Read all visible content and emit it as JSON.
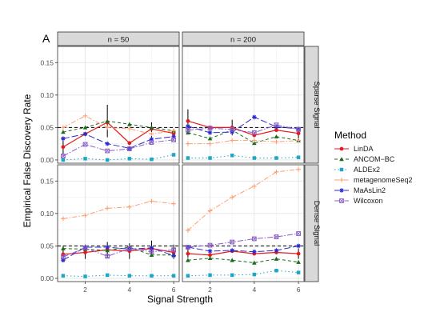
{
  "panel_tag": "A",
  "legend_title": "Method",
  "chart_data": {
    "type": "line",
    "xlabel": "Signal Strength",
    "ylabel": "Empirical False Discovery Rate",
    "x": [
      1,
      2,
      3,
      4,
      5,
      6
    ],
    "x_ticks": [
      2,
      4,
      6
    ],
    "xlim": [
      0.75,
      6.25
    ],
    "column_strips": [
      "n = 50",
      "n = 200"
    ],
    "row_strips": [
      "Sparse Signal",
      "Dense Signal"
    ],
    "reference_line": 0.05,
    "ylim": [
      -0.005,
      0.175
    ],
    "y_ticks": [
      0.0,
      0.05,
      0.1,
      0.15
    ],
    "y_tick_labels": [
      "0.00",
      "0.05",
      "0.10",
      "0.15"
    ],
    "grid": true,
    "legend_position": "right",
    "methods": [
      {
        "name": "LinDA",
        "color": "#e41a1c",
        "dash": "",
        "marker": "circle"
      },
      {
        "name": "ANCOM−BC",
        "color": "#1a6b1a",
        "dash": "4,3",
        "marker": "triangle"
      },
      {
        "name": "ALDEx2",
        "color": "#1ea7c4",
        "dash": "1.5,3",
        "marker": "square"
      },
      {
        "name": "metagenomeSeq2",
        "color": "#ff9f73",
        "dash": "6,2,1.5,2",
        "marker": "plus"
      },
      {
        "name": "MaAsLin2",
        "color": "#2a2ad2",
        "dash": "8,3",
        "marker": "star"
      },
      {
        "name": "Wilcoxon",
        "color": "#8b5fc7",
        "dash": "7,2,1.5,2",
        "marker": "square-cross"
      }
    ],
    "panels": [
      {
        "row": "Sparse Signal",
        "col": "n = 50",
        "series": {
          "LinDA": [
            0.02,
            0.04,
            0.058,
            0.026,
            0.048,
            0.041
          ],
          "ANCOM−BC": [
            0.043,
            0.05,
            0.06,
            0.055,
            0.05,
            0.045
          ],
          "ALDEx2": [
            0.0,
            0.002,
            0.0,
            0.002,
            0.001,
            0.008
          ],
          "metagenomeSeq2": [
            0.05,
            0.068,
            0.05,
            0.048,
            0.04,
            0.045
          ],
          "MaAsLin2": [
            0.033,
            0.04,
            0.025,
            0.018,
            0.032,
            0.036
          ],
          "Wilcoxon": [
            0.006,
            0.024,
            0.014,
            0.017,
            0.027,
            0.031
          ]
        },
        "error_bars": [
          {
            "method": "LinDA",
            "x": 3,
            "low": 0.035,
            "high": 0.085
          },
          {
            "method": "LinDA",
            "x": 1,
            "low": 0.008,
            "high": 0.032
          },
          {
            "method": "LinDA",
            "x": 5,
            "low": 0.035,
            "high": 0.058
          }
        ]
      },
      {
        "row": "Sparse Signal",
        "col": "n = 200",
        "series": {
          "LinDA": [
            0.06,
            0.05,
            0.05,
            0.038,
            0.046,
            0.041
          ],
          "ANCOM−BC": [
            0.042,
            0.033,
            0.046,
            0.026,
            0.036,
            0.03
          ],
          "ALDEx2": [
            0.003,
            0.003,
            0.007,
            0.003,
            0.003,
            0.004
          ],
          "metagenomeSeq2": [
            0.025,
            0.025,
            0.03,
            0.03,
            0.028,
            0.03
          ],
          "MaAsLin2": [
            0.052,
            0.042,
            0.043,
            0.066,
            0.051,
            0.048
          ],
          "Wilcoxon": [
            0.046,
            0.049,
            0.047,
            0.042,
            0.054,
            0.047
          ]
        },
        "error_bars": [
          {
            "method": "LinDA",
            "x": 1,
            "low": 0.042,
            "high": 0.078
          },
          {
            "method": "LinDA",
            "x": 3,
            "low": 0.038,
            "high": 0.062
          },
          {
            "method": "LinDA",
            "x": 6,
            "low": 0.032,
            "high": 0.05
          }
        ]
      },
      {
        "row": "Dense Signal",
        "col": "n = 50",
        "series": {
          "LinDA": [
            0.037,
            0.04,
            0.044,
            0.042,
            0.046,
            0.04
          ],
          "ANCOM−BC": [
            0.046,
            0.045,
            0.043,
            0.048,
            0.036,
            0.036
          ],
          "ALDEx2": [
            0.004,
            0.003,
            0.005,
            0.004,
            0.004,
            0.004
          ],
          "metagenomeSeq2": [
            0.092,
            0.097,
            0.108,
            0.11,
            0.119,
            0.115
          ],
          "MaAsLin2": [
            0.028,
            0.048,
            0.048,
            0.045,
            0.047,
            0.035
          ],
          "Wilcoxon": [
            0.033,
            0.047,
            0.034,
            0.046,
            0.041,
            0.044
          ]
        },
        "error_bars": [
          {
            "method": "LinDA",
            "x": 1,
            "low": 0.025,
            "high": 0.05
          },
          {
            "method": "LinDA",
            "x": 2,
            "low": 0.03,
            "high": 0.052
          },
          {
            "method": "LinDA",
            "x": 3,
            "low": 0.032,
            "high": 0.056
          },
          {
            "method": "LinDA",
            "x": 4,
            "low": 0.03,
            "high": 0.054
          },
          {
            "method": "LinDA",
            "x": 5,
            "low": 0.034,
            "high": 0.058
          },
          {
            "method": "LinDA",
            "x": 6,
            "low": 0.03,
            "high": 0.052
          }
        ]
      },
      {
        "row": "Dense Signal",
        "col": "n = 200",
        "series": {
          "LinDA": [
            0.038,
            0.036,
            0.042,
            0.038,
            0.04,
            0.038
          ],
          "ANCOM−BC": [
            0.028,
            0.031,
            0.028,
            0.024,
            0.03,
            0.025
          ],
          "ALDEx2": [
            0.004,
            0.005,
            0.005,
            0.006,
            0.012,
            0.009
          ],
          "metagenomeSeq2": [
            0.074,
            0.104,
            0.125,
            0.142,
            0.164,
            0.168
          ],
          "MaAsLin2": [
            0.048,
            0.042,
            0.043,
            0.041,
            0.043,
            0.05
          ],
          "Wilcoxon": [
            0.048,
            0.051,
            0.056,
            0.061,
            0.064,
            0.069
          ]
        },
        "error_bars": [
          {
            "method": "LinDA",
            "x": 1,
            "low": 0.032,
            "high": 0.045
          },
          {
            "method": "LinDA",
            "x": 6,
            "low": 0.03,
            "high": 0.046
          }
        ]
      }
    ]
  }
}
